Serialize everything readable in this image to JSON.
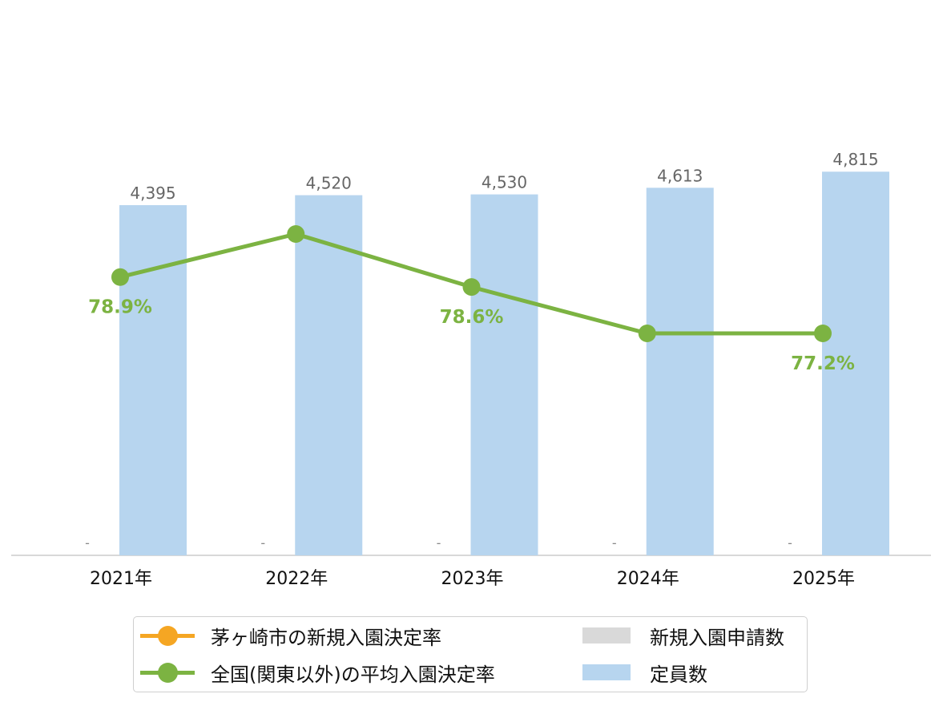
{
  "chart_data": {
    "type": "bar",
    "categories": [
      "2021年",
      "2022年",
      "2023年",
      "2024年",
      "2025年"
    ],
    "series": [
      {
        "name": "新規入園申請数",
        "kind": "bar",
        "color": "#d9d9d9",
        "values": [
          null,
          null,
          null,
          null,
          null
        ],
        "labels": [
          "-",
          "-",
          "-",
          "-",
          "-"
        ]
      },
      {
        "name": "定員数",
        "kind": "bar",
        "color": "#b7d5ef",
        "values": [
          4395,
          4520,
          4530,
          4613,
          4815
        ],
        "labels": [
          "4,395",
          "4,520",
          "4,530",
          "4,613",
          "4,815"
        ]
      },
      {
        "name": "茅ヶ崎市の新規入園決定率",
        "kind": "line",
        "color": "#f5a623",
        "values": [
          null,
          null,
          null,
          null,
          null
        ]
      },
      {
        "name": "全国(関東以外)の平均入園決定率",
        "kind": "line",
        "color": "#7cb342",
        "values": [
          78.9,
          80.2,
          78.6,
          77.2,
          77.2
        ],
        "labels": [
          "78.9%",
          "",
          "78.6%",
          "",
          "77.2%"
        ]
      }
    ],
    "bar_ylim": [
      0,
      6000
    ],
    "line_ylim_note": "secondary axis (hidden)",
    "grid": false,
    "legend_position": "bottom"
  },
  "legend": {
    "items": [
      {
        "label": "茅ヶ崎市の新規入園決定率",
        "type": "line",
        "color": "#f5a623"
      },
      {
        "label": "新規入園申請数",
        "type": "patch",
        "color": "#d9d9d9"
      },
      {
        "label": "全国(関東以外)の平均入園決定率",
        "type": "line",
        "color": "#7cb342"
      },
      {
        "label": "定員数",
        "type": "patch",
        "color": "#b7d5ef"
      }
    ]
  }
}
